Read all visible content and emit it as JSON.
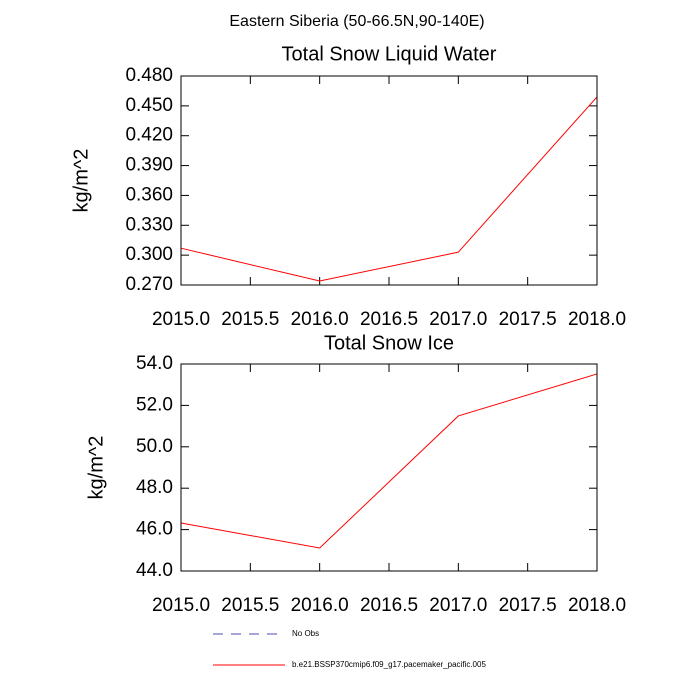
{
  "title": "Eastern Siberia (50-66.5N,90-140E)",
  "chart_data": [
    {
      "type": "line",
      "title": "Total Snow Liquid Water",
      "ylabel": "kg/m^2",
      "x": [
        2015,
        2016,
        2017,
        2018
      ],
      "series": [
        {
          "name": "b.e21.BSSP370cmip6.f09_g17.pacemaker_pacific.005",
          "color": "#ff0000",
          "values": [
            0.307,
            0.274,
            0.303,
            0.459
          ]
        }
      ],
      "xlim": [
        2015,
        2018
      ],
      "xticks": [
        {
          "value": 2015,
          "label": "2015.0"
        },
        {
          "value": 2015.5,
          "label": "2015.5"
        },
        {
          "value": 2016,
          "label": "2016.0"
        },
        {
          "value": 2016.5,
          "label": "2016.5"
        },
        {
          "value": 2017,
          "label": "2017.0"
        },
        {
          "value": 2017.5,
          "label": "2017.5"
        },
        {
          "value": 2018,
          "label": "2018.0"
        }
      ],
      "ylim": [
        0.27,
        0.48
      ],
      "yticks": [
        {
          "value": 0.27,
          "label": "0.270"
        },
        {
          "value": 0.3,
          "label": "0.300"
        },
        {
          "value": 0.33,
          "label": "0.330"
        },
        {
          "value": 0.36,
          "label": "0.360"
        },
        {
          "value": 0.39,
          "label": "0.390"
        },
        {
          "value": 0.42,
          "label": "0.420"
        },
        {
          "value": 0.45,
          "label": "0.450"
        },
        {
          "value": 0.48,
          "label": "0.480"
        }
      ],
      "grid": false
    },
    {
      "type": "line",
      "title": "Total Snow Ice",
      "ylabel": "kg/m^2",
      "x": [
        2015,
        2016,
        2017,
        2018
      ],
      "series": [
        {
          "name": "b.e21.BSSP370cmip6.f09_g17.pacemaker_pacific.005",
          "color": "#ff0000",
          "values": [
            46.32,
            45.11,
            51.49,
            53.52
          ]
        }
      ],
      "xlim": [
        2015,
        2018
      ],
      "xticks": [
        {
          "value": 2015,
          "label": "2015.0"
        },
        {
          "value": 2015.5,
          "label": "2015.5"
        },
        {
          "value": 2016,
          "label": "2016.0"
        },
        {
          "value": 2016.5,
          "label": "2016.5"
        },
        {
          "value": 2017,
          "label": "2017.0"
        },
        {
          "value": 2017.5,
          "label": "2017.5"
        },
        {
          "value": 2018,
          "label": "2018.0"
        }
      ],
      "ylim": [
        44,
        54
      ],
      "yticks": [
        {
          "value": 44,
          "label": "44.0"
        },
        {
          "value": 46,
          "label": "46.0"
        },
        {
          "value": 48,
          "label": "48.0"
        },
        {
          "value": 50,
          "label": "50.0"
        },
        {
          "value": 52,
          "label": "52.0"
        },
        {
          "value": 54,
          "label": "54.0"
        }
      ],
      "grid": false
    }
  ],
  "legend": [
    {
      "name": "No Obs",
      "color": "#4b4bb0",
      "dash": true
    }
  ]
}
